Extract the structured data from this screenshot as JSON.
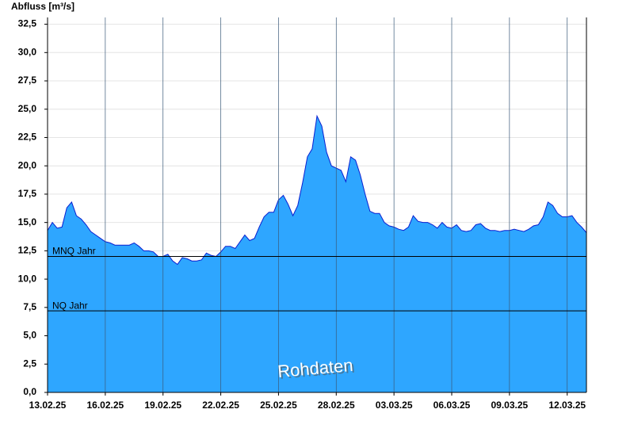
{
  "chart_data": {
    "type": "area",
    "title": "Abfluss [m³/s]",
    "watermark": "Rohdaten",
    "color": "#2ea6ff",
    "line_color": "#0a1fd0",
    "x": [
      "2025-02-13T00:00",
      "2025-02-13T06:00",
      "2025-02-13T12:00",
      "2025-02-13T18:00",
      "2025-02-14T00:00",
      "2025-02-14T06:00",
      "2025-02-14T12:00",
      "2025-02-14T18:00",
      "2025-02-15T00:00",
      "2025-02-15T06:00",
      "2025-02-15T12:00",
      "2025-02-15T18:00",
      "2025-02-16T00:00",
      "2025-02-16T06:00",
      "2025-02-16T12:00",
      "2025-02-16T18:00",
      "2025-02-17T00:00",
      "2025-02-17T06:00",
      "2025-02-17T12:00",
      "2025-02-17T18:00",
      "2025-02-18T00:00",
      "2025-02-18T06:00",
      "2025-02-18T12:00",
      "2025-02-18T18:00",
      "2025-02-19T00:00",
      "2025-02-19T06:00",
      "2025-02-19T12:00",
      "2025-02-19T18:00",
      "2025-02-20T00:00",
      "2025-02-20T06:00",
      "2025-02-20T12:00",
      "2025-02-20T18:00",
      "2025-02-21T00:00",
      "2025-02-21T06:00",
      "2025-02-21T12:00",
      "2025-02-21T18:00",
      "2025-02-22T00:00",
      "2025-02-22T06:00",
      "2025-02-22T12:00",
      "2025-02-22T18:00",
      "2025-02-23T00:00",
      "2025-02-23T06:00",
      "2025-02-23T12:00",
      "2025-02-23T18:00",
      "2025-02-24T00:00",
      "2025-02-24T06:00",
      "2025-02-24T12:00",
      "2025-02-24T18:00",
      "2025-02-25T00:00",
      "2025-02-25T06:00",
      "2025-02-25T12:00",
      "2025-02-25T18:00",
      "2025-02-26T00:00",
      "2025-02-26T06:00",
      "2025-02-26T12:00",
      "2025-02-26T18:00",
      "2025-02-27T00:00",
      "2025-02-27T06:00",
      "2025-02-27T12:00",
      "2025-02-27T18:00",
      "2025-02-28T00:00",
      "2025-02-28T06:00",
      "2025-02-28T12:00",
      "2025-02-28T18:00",
      "2025-03-01T00:00",
      "2025-03-01T06:00",
      "2025-03-01T12:00",
      "2025-03-01T18:00",
      "2025-03-02T00:00",
      "2025-03-02T06:00",
      "2025-03-02T12:00",
      "2025-03-02T18:00",
      "2025-03-03T00:00",
      "2025-03-03T06:00",
      "2025-03-03T12:00",
      "2025-03-03T18:00",
      "2025-03-04T00:00",
      "2025-03-04T06:00",
      "2025-03-04T12:00",
      "2025-03-04T18:00",
      "2025-03-05T00:00",
      "2025-03-05T06:00",
      "2025-03-05T12:00",
      "2025-03-05T18:00",
      "2025-03-06T00:00",
      "2025-03-06T06:00",
      "2025-03-06T12:00",
      "2025-03-06T18:00",
      "2025-03-07T00:00",
      "2025-03-07T06:00",
      "2025-03-07T12:00",
      "2025-03-07T18:00",
      "2025-03-08T00:00",
      "2025-03-08T06:00",
      "2025-03-08T12:00",
      "2025-03-08T18:00",
      "2025-03-09T00:00",
      "2025-03-09T06:00",
      "2025-03-09T12:00",
      "2025-03-09T18:00",
      "2025-03-10T00:00",
      "2025-03-10T06:00",
      "2025-03-10T12:00",
      "2025-03-10T18:00",
      "2025-03-11T00:00",
      "2025-03-11T06:00",
      "2025-03-11T12:00",
      "2025-03-11T18:00",
      "2025-03-12T00:00",
      "2025-03-12T06:00",
      "2025-03-12T12:00",
      "2025-03-12T18:00",
      "2025-03-13T00:00"
    ],
    "values": [
      14.3,
      15.0,
      14.5,
      14.6,
      16.3,
      16.8,
      15.6,
      15.3,
      14.8,
      14.2,
      13.9,
      13.6,
      13.3,
      13.2,
      13.0,
      13.0,
      13.0,
      13.0,
      13.2,
      12.9,
      12.5,
      12.5,
      12.4,
      12.0,
      12.0,
      12.2,
      11.6,
      11.3,
      11.9,
      11.8,
      11.6,
      11.6,
      11.7,
      12.3,
      12.1,
      12.0,
      12.4,
      12.9,
      12.9,
      12.7,
      13.3,
      13.9,
      13.4,
      13.6,
      14.6,
      15.5,
      15.9,
      15.9,
      17.0,
      17.4,
      16.6,
      15.6,
      16.5,
      18.5,
      20.8,
      21.5,
      24.4,
      23.5,
      21.2,
      20.0,
      19.8,
      19.6,
      18.6,
      20.8,
      20.5,
      19.2,
      17.5,
      16.0,
      15.8,
      15.8,
      15.0,
      14.7,
      14.6,
      14.4,
      14.3,
      14.6,
      15.6,
      15.1,
      15.0,
      15.0,
      14.8,
      14.5,
      15.0,
      14.6,
      14.5,
      14.8,
      14.3,
      14.2,
      14.3,
      14.8,
      14.9,
      14.5,
      14.3,
      14.3,
      14.2,
      14.3,
      14.3,
      14.4,
      14.3,
      14.2,
      14.4,
      14.7,
      14.8,
      15.5,
      16.8,
      16.5,
      15.8,
      15.5,
      15.5,
      15.6,
      15.0,
      14.6,
      14.1
    ],
    "xlim": [
      "2025-02-13T00:00",
      "2025-03-13T00:00"
    ],
    "xticks": [
      {
        "value": "2025-02-13T00:00",
        "label": "13.02.25"
      },
      {
        "value": "2025-02-16T00:00",
        "label": "16.02.25"
      },
      {
        "value": "2025-02-19T00:00",
        "label": "19.02.25"
      },
      {
        "value": "2025-02-22T00:00",
        "label": "22.02.25"
      },
      {
        "value": "2025-02-25T00:00",
        "label": "25.02.25"
      },
      {
        "value": "2025-02-28T00:00",
        "label": "28.02.25"
      },
      {
        "value": "2025-03-03T00:00",
        "label": "03.03.25"
      },
      {
        "value": "2025-03-06T00:00",
        "label": "06.03.25"
      },
      {
        "value": "2025-03-09T00:00",
        "label": "09.03.25"
      },
      {
        "value": "2025-03-12T00:00",
        "label": "12.03.25"
      }
    ],
    "ylim": [
      0,
      33.1
    ],
    "yticks": [
      {
        "value": 0,
        "label": "0,0"
      },
      {
        "value": 2.5,
        "label": "2,5"
      },
      {
        "value": 5,
        "label": "5,0"
      },
      {
        "value": 7.5,
        "label": "7,5"
      },
      {
        "value": 10,
        "label": "10,0"
      },
      {
        "value": 12.5,
        "label": "12,5"
      },
      {
        "value": 15,
        "label": "15,0"
      },
      {
        "value": 17.5,
        "label": "17,5"
      },
      {
        "value": 20,
        "label": "20,0"
      },
      {
        "value": 22.5,
        "label": "22,5"
      },
      {
        "value": 25,
        "label": "25,0"
      },
      {
        "value": 27.5,
        "label": "27,5"
      },
      {
        "value": 30,
        "label": "30,0"
      },
      {
        "value": 32.5,
        "label": "32,5"
      }
    ],
    "grid": true,
    "reference_lines": [
      {
        "label": "MNQ Jahr",
        "value": 12.0
      },
      {
        "label": "NQ Jahr",
        "value": 7.2
      }
    ]
  }
}
